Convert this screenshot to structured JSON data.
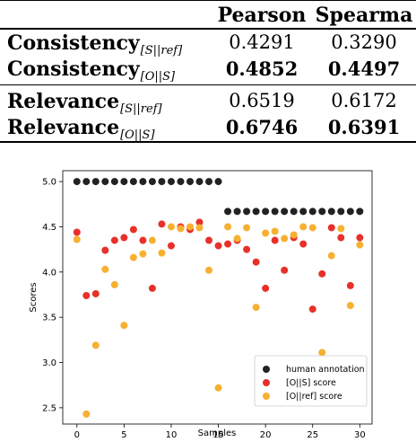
{
  "table": {
    "headers": [
      "Pearson",
      "Spearma"
    ],
    "rows": [
      {
        "label": "Consistency",
        "subscript": "[S||ref]",
        "pearson": "0.4291",
        "spearman": "0.3290",
        "bold": false
      },
      {
        "label": "Consistency",
        "subscript": "[O||S]",
        "pearson": "0.4852",
        "spearman": "0.4497",
        "bold": true
      },
      {
        "label": "Relevance",
        "subscript": "[S||ref]",
        "pearson": "0.6519",
        "spearman": "0.6172",
        "bold": false
      },
      {
        "label": "Relevance",
        "subscript": "[O||S]",
        "pearson": "0.6746",
        "spearman": "0.6391",
        "bold": true
      }
    ]
  },
  "chart_data": {
    "type": "scatter",
    "xlabel": "Samples",
    "ylabel": "Scores",
    "xlim": [
      -1.5,
      31.3
    ],
    "ylim": [
      2.32,
      5.12
    ],
    "xticks": [
      0,
      5,
      10,
      15,
      20,
      25,
      30
    ],
    "yticks": [
      2.5,
      3.0,
      3.5,
      4.0,
      4.5,
      5.0
    ],
    "legend_position": "lower-right",
    "series": [
      {
        "name": "human annotation",
        "color": "#222222",
        "x": [
          0,
          1,
          2,
          3,
          4,
          5,
          6,
          7,
          8,
          9,
          10,
          11,
          12,
          13,
          14,
          15,
          16,
          17,
          18,
          19,
          20,
          21,
          22,
          23,
          24,
          25,
          26,
          27,
          28,
          29,
          30
        ],
        "y": [
          5.0,
          5.0,
          5.0,
          5.0,
          5.0,
          5.0,
          5.0,
          5.0,
          5.0,
          5.0,
          5.0,
          5.0,
          5.0,
          5.0,
          5.0,
          5.0,
          4.67,
          4.67,
          4.67,
          4.67,
          4.67,
          4.67,
          4.67,
          4.67,
          4.67,
          4.67,
          4.67,
          4.67,
          4.67,
          4.67,
          4.67
        ]
      },
      {
        "name": "[O||S] score",
        "color": "#e8302a",
        "x": [
          0,
          1,
          2,
          3,
          4,
          5,
          6,
          7,
          8,
          9,
          10,
          11,
          12,
          13,
          14,
          15,
          16,
          17,
          18,
          19,
          20,
          21,
          22,
          23,
          24,
          25,
          26,
          27,
          28,
          29,
          30
        ],
        "y": [
          4.44,
          3.74,
          3.76,
          4.24,
          4.35,
          4.38,
          4.47,
          4.35,
          3.82,
          4.53,
          4.29,
          4.5,
          4.47,
          4.55,
          4.35,
          4.29,
          4.31,
          4.35,
          4.25,
          4.11,
          3.82,
          4.35,
          4.02,
          4.38,
          4.31,
          3.59,
          3.98,
          4.49,
          4.38,
          3.85,
          4.38
        ]
      },
      {
        "name": "[O||ref] score",
        "color": "#f7b030",
        "x": [
          0,
          1,
          2,
          3,
          4,
          5,
          6,
          7,
          8,
          9,
          10,
          11,
          12,
          13,
          14,
          15,
          16,
          17,
          18,
          19,
          20,
          21,
          22,
          23,
          24,
          25,
          26,
          27,
          28,
          29,
          30
        ],
        "y": [
          4.36,
          2.43,
          3.19,
          4.03,
          3.86,
          3.41,
          4.16,
          4.2,
          4.35,
          4.21,
          4.5,
          4.48,
          4.5,
          4.49,
          4.02,
          2.72,
          4.5,
          4.37,
          4.49,
          3.61,
          4.43,
          4.45,
          4.37,
          4.41,
          4.5,
          4.49,
          3.11,
          4.18,
          4.48,
          3.63,
          4.3
        ]
      }
    ]
  }
}
